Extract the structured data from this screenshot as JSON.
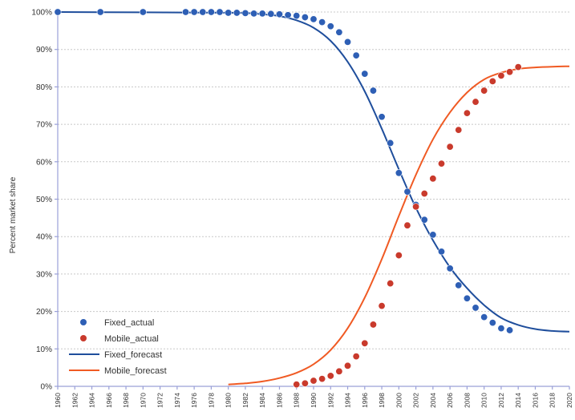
{
  "chart_data": {
    "type": "scatter",
    "title": "",
    "xlabel": "",
    "ylabel": "Percent market share",
    "xlim": [
      1960,
      2020
    ],
    "ylim": [
      0,
      100
    ],
    "grid": true,
    "legend_position": "bottom-left",
    "x_ticks": [
      "1960",
      "1962",
      "1964",
      "1966",
      "1968",
      "1970",
      "1972",
      "1974",
      "1976",
      "1978",
      "1980",
      "1982",
      "1984",
      "1986",
      "1988",
      "1990",
      "1992",
      "1994",
      "1996",
      "1998",
      "2000",
      "2002",
      "2004",
      "2006",
      "2008",
      "2010",
      "2012",
      "2014",
      "2016",
      "2018",
      "2020"
    ],
    "y_ticks": [
      "0%",
      "10%",
      "20%",
      "30%",
      "40%",
      "50%",
      "60%",
      "70%",
      "80%",
      "90%",
      "100%"
    ],
    "series": [
      {
        "name": "Fixed_actual",
        "kind": "points",
        "color": "#2e5fb5",
        "points": [
          [
            1960,
            100
          ],
          [
            1965,
            100
          ],
          [
            1970,
            100
          ],
          [
            1975,
            100
          ],
          [
            1976,
            100
          ],
          [
            1977,
            100
          ],
          [
            1978,
            100
          ],
          [
            1979,
            100
          ],
          [
            1980,
            99.8
          ],
          [
            1981,
            99.8
          ],
          [
            1982,
            99.7
          ],
          [
            1983,
            99.6
          ],
          [
            1984,
            99.6
          ],
          [
            1985,
            99.5
          ],
          [
            1986,
            99.4
          ],
          [
            1987,
            99.2
          ],
          [
            1988,
            99
          ],
          [
            1989,
            98.6
          ],
          [
            1990,
            98.1
          ],
          [
            1991,
            97.3
          ],
          [
            1992,
            96.2
          ],
          [
            1993,
            94.6
          ],
          [
            1994,
            92
          ],
          [
            1995,
            88.4
          ],
          [
            1996,
            83.5
          ],
          [
            1997,
            79
          ],
          [
            1998,
            72
          ],
          [
            1999,
            65
          ],
          [
            2000,
            57
          ],
          [
            2001,
            52
          ],
          [
            2002,
            48.5
          ],
          [
            2003,
            44.5
          ],
          [
            2004,
            40.5
          ],
          [
            2005,
            36
          ],
          [
            2006,
            31.5
          ],
          [
            2007,
            27
          ],
          [
            2008,
            23.5
          ],
          [
            2009,
            21
          ],
          [
            2010,
            18.5
          ],
          [
            2011,
            17
          ],
          [
            2012,
            15.5
          ],
          [
            2013,
            15
          ]
        ]
      },
      {
        "name": "Mobile_actual",
        "kind": "points",
        "color": "#c93a2c",
        "points": [
          [
            1988,
            0.5
          ],
          [
            1989,
            0.8
          ],
          [
            1990,
            1.5
          ],
          [
            1991,
            2
          ],
          [
            1992,
            2.8
          ],
          [
            1993,
            4
          ],
          [
            1994,
            5.5
          ],
          [
            1995,
            8
          ],
          [
            1996,
            11.5
          ],
          [
            1997,
            16.5
          ],
          [
            1998,
            21.5
          ],
          [
            1999,
            27.5
          ],
          [
            2000,
            35
          ],
          [
            2001,
            43
          ],
          [
            2002,
            48
          ],
          [
            2003,
            51.5
          ],
          [
            2004,
            55.5
          ],
          [
            2005,
            59.5
          ],
          [
            2006,
            64
          ],
          [
            2007,
            68.5
          ],
          [
            2008,
            73
          ],
          [
            2009,
            76
          ],
          [
            2010,
            79
          ],
          [
            2011,
            81.5
          ],
          [
            2012,
            83
          ],
          [
            2013,
            84
          ],
          [
            2014,
            85.3
          ]
        ]
      },
      {
        "name": "Fixed_forecast",
        "kind": "line",
        "color": "#1f4e9c",
        "points": [
          [
            1960,
            100
          ],
          [
            1980,
            99.8
          ],
          [
            1984,
            99.4
          ],
          [
            1986,
            98.9
          ],
          [
            1988,
            97.8
          ],
          [
            1990,
            95.8
          ],
          [
            1992,
            92.3
          ],
          [
            1994,
            86.7
          ],
          [
            1996,
            78.8
          ],
          [
            1998,
            68.8
          ],
          [
            2000,
            58
          ],
          [
            2002,
            47.7
          ],
          [
            2004,
            39
          ],
          [
            2006,
            31.8
          ],
          [
            2008,
            26.2
          ],
          [
            2010,
            21.7
          ],
          [
            2012,
            18.3
          ],
          [
            2014,
            16.4
          ],
          [
            2016,
            15.3
          ],
          [
            2018,
            14.8
          ],
          [
            2020,
            14.6
          ]
        ]
      },
      {
        "name": "Mobile_forecast",
        "kind": "line",
        "color": "#f05a23",
        "points": [
          [
            1980,
            0.5
          ],
          [
            1982,
            0.8
          ],
          [
            1984,
            1.3
          ],
          [
            1986,
            2.2
          ],
          [
            1988,
            3.6
          ],
          [
            1990,
            5.9
          ],
          [
            1992,
            9.7
          ],
          [
            1994,
            15.5
          ],
          [
            1996,
            23.7
          ],
          [
            1998,
            34
          ],
          [
            2000,
            45.5
          ],
          [
            2002,
            56.5
          ],
          [
            2004,
            66
          ],
          [
            2006,
            73.2
          ],
          [
            2008,
            78.5
          ],
          [
            2010,
            82
          ],
          [
            2012,
            83.8
          ],
          [
            2014,
            84.8
          ],
          [
            2016,
            85.2
          ],
          [
            2018,
            85.4
          ],
          [
            2020,
            85.5
          ]
        ]
      }
    ]
  }
}
